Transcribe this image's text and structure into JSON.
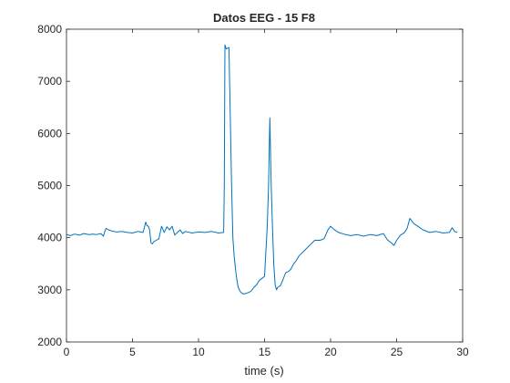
{
  "chart_data": {
    "type": "line",
    "title": "Datos EEG - 15 F8",
    "xlabel": "time (s)",
    "ylabel": "",
    "xlim": [
      0,
      30
    ],
    "ylim": [
      2000,
      8000
    ],
    "xticks": [
      "0",
      "5",
      "10",
      "15",
      "20",
      "25",
      "30"
    ],
    "yticks": [
      "2000",
      "3000",
      "4000",
      "5000",
      "6000",
      "7000",
      "8000"
    ],
    "grid": false,
    "legend": "none",
    "line_color": "#0072bd",
    "series": [
      {
        "x": [
          0,
          0.3,
          0.6,
          1.0,
          1.3,
          1.7,
          2.0,
          2.3,
          2.6,
          2.8,
          2.9,
          3.0,
          3.1,
          3.4,
          3.8,
          4.2,
          4.6,
          5.0,
          5.4,
          5.8,
          5.9,
          6.0,
          6.1,
          6.2,
          6.3,
          6.4,
          6.5,
          6.6,
          6.8,
          7.0,
          7.2,
          7.4,
          7.6,
          7.8,
          8.0,
          8.2,
          8.4,
          8.6,
          8.8,
          9.0,
          9.5,
          10.0,
          10.5,
          11.0,
          11.5,
          11.9,
          11.95,
          12.0,
          12.1,
          12.3,
          12.5,
          12.6,
          12.7,
          12.8,
          12.9,
          13.0,
          13.2,
          13.4,
          13.6,
          13.8,
          14.0,
          14.2,
          14.4,
          14.6,
          14.8,
          15.0,
          15.2,
          15.3,
          15.4,
          15.5,
          15.6,
          15.7,
          15.8,
          15.9,
          16.0,
          16.2,
          16.4,
          16.6,
          16.8,
          17.0,
          17.2,
          17.4,
          17.6,
          17.8,
          18.0,
          18.4,
          18.6,
          18.8,
          19.2,
          19.5,
          19.8,
          20.0,
          20.3,
          20.6,
          21.0,
          21.5,
          22.0,
          22.5,
          23.0,
          23.5,
          24.0,
          24.3,
          24.6,
          24.8,
          25.0,
          25.3,
          25.6,
          25.8,
          26.0,
          26.3,
          26.6,
          27.0,
          27.5,
          28.0,
          28.5,
          29.0,
          29.2,
          29.4,
          29.6
        ],
        "y": [
          4060,
          4040,
          4070,
          4050,
          4080,
          4060,
          4070,
          4060,
          4080,
          4030,
          4120,
          4180,
          4160,
          4130,
          4110,
          4120,
          4100,
          4090,
          4120,
          4100,
          4200,
          4300,
          4230,
          4220,
          4150,
          3900,
          3880,
          3920,
          3950,
          3980,
          4220,
          4100,
          4210,
          4150,
          4220,
          4050,
          4100,
          4150,
          4080,
          4120,
          4090,
          4110,
          4100,
          4120,
          4090,
          4100,
          5000,
          7700,
          7620,
          7650,
          5000,
          4000,
          3650,
          3400,
          3200,
          3050,
          2950,
          2920,
          2930,
          2950,
          2980,
          3050,
          3100,
          3180,
          3220,
          3260,
          4200,
          5000,
          6300,
          5000,
          4200,
          3500,
          3100,
          3000,
          3050,
          3080,
          3200,
          3330,
          3350,
          3400,
          3500,
          3560,
          3650,
          3700,
          3750,
          3850,
          3900,
          3950,
          3950,
          3980,
          4150,
          4220,
          4150,
          4100,
          4070,
          4040,
          4060,
          4030,
          4060,
          4040,
          4080,
          3960,
          3900,
          3850,
          3950,
          4050,
          4100,
          4180,
          4370,
          4270,
          4220,
          4150,
          4100,
          4120,
          4090,
          4100,
          4190,
          4120,
          4100
        ]
      }
    ]
  }
}
